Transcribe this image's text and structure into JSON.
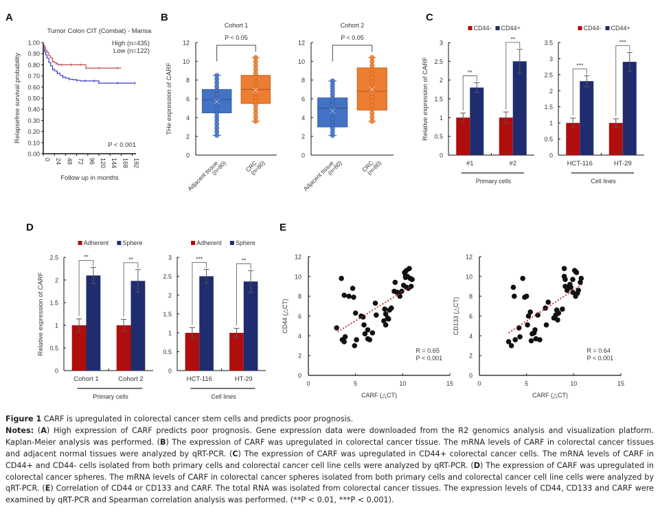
{
  "panels": {
    "A": "A",
    "B": "B",
    "C": "C",
    "D": "D",
    "E": "E"
  },
  "chart_data": [
    {
      "id": "A",
      "type": "line",
      "title": "Tumor Colon CIT (Combat) - Marisa",
      "xlabel": "Follow up in months",
      "ylabel": "Relapsefree survival probability",
      "xticks": [
        "0",
        "24",
        "48",
        "72",
        "96",
        "120",
        "144",
        "168",
        "192"
      ],
      "yticks": [
        "0.00",
        "0.10",
        "0.20",
        "0.30",
        "0.40",
        "0.50",
        "0.60",
        "0.70",
        "0.80",
        "0.90",
        "1.00"
      ],
      "xlim": [
        0,
        200
      ],
      "ylim": [
        0,
        1
      ],
      "annotation": "P < 0.001",
      "series": [
        {
          "name": "High (n=435)",
          "color": "#3a3acc",
          "x": [
            0,
            2,
            5,
            8,
            12,
            16,
            20,
            24,
            30,
            36,
            42,
            48,
            56,
            64,
            72,
            80,
            90,
            100,
            110,
            118,
            120,
            140,
            160,
            180,
            198
          ],
          "y": [
            0.95,
            0.92,
            0.89,
            0.86,
            0.82,
            0.79,
            0.76,
            0.745,
            0.725,
            0.705,
            0.69,
            0.68,
            0.67,
            0.665,
            0.66,
            0.655,
            0.655,
            0.655,
            0.655,
            0.655,
            0.635,
            0.635,
            0.635,
            0.635,
            0.635
          ]
        },
        {
          "name": "Low  (n=122)",
          "color": "#b94a48",
          "x": [
            0,
            2,
            5,
            8,
            12,
            16,
            20,
            24,
            28,
            32,
            40,
            50,
            60,
            70,
            80,
            90,
            92,
            100,
            120,
            140,
            160,
            168
          ],
          "y": [
            0.98,
            0.96,
            0.93,
            0.91,
            0.88,
            0.86,
            0.83,
            0.82,
            0.81,
            0.8,
            0.8,
            0.8,
            0.8,
            0.8,
            0.8,
            0.8,
            0.77,
            0.77,
            0.77,
            0.77,
            0.77,
            0.77
          ]
        }
      ]
    },
    {
      "id": "B1",
      "type": "box",
      "title": "Cohort 1",
      "ylabel": "THe expression of CARF",
      "ylim": [
        0,
        12
      ],
      "yticks": [
        "0",
        "2",
        "4",
        "6",
        "8",
        "10",
        "12"
      ],
      "significance": "P < 0.05",
      "categories": [
        "Adjacent tissue",
        "CRC"
      ],
      "category_n": [
        "(n=80)",
        "(n=80)"
      ],
      "boxes": [
        {
          "min": 2.1,
          "q1": 4.5,
          "median": 5.9,
          "q3": 7.0,
          "max": 8.5,
          "mean": 5.7,
          "color": "#4472c4"
        },
        {
          "min": 3.6,
          "q1": 5.5,
          "median": 7.0,
          "q3": 8.5,
          "max": 10.4,
          "mean": 6.9,
          "color": "#ed7d31"
        }
      ]
    },
    {
      "id": "B2",
      "type": "box",
      "title": "Cohort 2",
      "ylim": [
        0,
        12
      ],
      "yticks": [
        "0",
        "2",
        "4",
        "6",
        "8",
        "10",
        "12"
      ],
      "significance": "P < 0.05",
      "categories": [
        "Adjacent tissue",
        "CRC"
      ],
      "category_n": [
        "(n=80)",
        "(n=80)"
      ],
      "boxes": [
        {
          "min": 2.1,
          "q1": 3.0,
          "median": 5.0,
          "q3": 6.1,
          "max": 7.9,
          "mean": 4.7,
          "color": "#4472c4"
        },
        {
          "min": 3.6,
          "q1": 4.8,
          "median": 6.8,
          "q3": 9.3,
          "max": 10.4,
          "mean": 7.0,
          "color": "#ed7d31"
        }
      ]
    },
    {
      "id": "C1",
      "type": "bar",
      "ylabel": "Relative expression of CARF",
      "ylim": [
        0,
        3
      ],
      "yticks": [
        "0",
        "0.5",
        "1",
        "1.5",
        "2",
        "2.5",
        "3"
      ],
      "categories": [
        "#1",
        "#2"
      ],
      "group_label": "Primary cells",
      "legend": [
        "CD44-",
        "CD44+"
      ],
      "series": [
        {
          "name": "CD44-",
          "color": "#b00d0d",
          "values": [
            1.0,
            1.0
          ],
          "errors": [
            0.12,
            0.15
          ]
        },
        {
          "name": "CD44+",
          "color": "#1f2d6e",
          "values": [
            1.8,
            2.5
          ],
          "errors": [
            0.13,
            0.32
          ]
        }
      ],
      "stars": [
        "**",
        "**"
      ]
    },
    {
      "id": "C2",
      "type": "bar",
      "ylim": [
        0,
        3.5
      ],
      "yticks": [
        "0",
        "0.5",
        "1",
        "1.5",
        "2",
        "2.5",
        "3",
        "3.5"
      ],
      "categories": [
        "HCT-116",
        "HT-29"
      ],
      "group_label": "Cell lines",
      "legend": [
        "CD44-",
        "CD44+"
      ],
      "series": [
        {
          "name": "CD44-",
          "color": "#b00d0d",
          "values": [
            1.0,
            1.0
          ],
          "errors": [
            0.15,
            0.13
          ]
        },
        {
          "name": "CD44+",
          "color": "#1f2d6e",
          "values": [
            2.3,
            2.9
          ],
          "errors": [
            0.17,
            0.29
          ]
        }
      ],
      "stars": [
        "***",
        "***"
      ]
    },
    {
      "id": "D1",
      "type": "bar",
      "ylabel": "Relative expression of CARF",
      "ylim": [
        0,
        2.5
      ],
      "yticks": [
        "0",
        "0.5",
        "1",
        "1.5",
        "2",
        "2.5"
      ],
      "categories": [
        "Cohort 1",
        "Cohort 2"
      ],
      "group_label": "Primary cells",
      "legend": [
        "Adherent",
        "Sphere"
      ],
      "series": [
        {
          "name": "Adherent",
          "color": "#b00d0d",
          "values": [
            1.0,
            1.0
          ],
          "errors": [
            0.14,
            0.13
          ]
        },
        {
          "name": "Sphere",
          "color": "#1f2d6e",
          "values": [
            2.1,
            1.98
          ],
          "errors": [
            0.18,
            0.25
          ]
        }
      ],
      "stars": [
        "**",
        "**"
      ]
    },
    {
      "id": "D2",
      "type": "bar",
      "ylim": [
        0,
        3
      ],
      "yticks": [
        "0",
        "0.5",
        "1",
        "1.5",
        "2",
        "2.5",
        "3"
      ],
      "categories": [
        "HCT-116",
        "HT-29"
      ],
      "group_label": "Cell lines",
      "legend": [
        "Adherent",
        "Sphere"
      ],
      "series": [
        {
          "name": "Adherent",
          "color": "#b00d0d",
          "values": [
            1.0,
            1.0
          ],
          "errors": [
            0.14,
            0.12
          ]
        },
        {
          "name": "Sphere",
          "color": "#1f2d6e",
          "values": [
            2.5,
            2.36
          ],
          "errors": [
            0.18,
            0.29
          ]
        }
      ],
      "stars": [
        "***",
        "**"
      ]
    },
    {
      "id": "E1",
      "type": "scatter",
      "xlabel": "CARF (△CT)",
      "ylabel": "CD44 (△CT)",
      "xlim": [
        0,
        15
      ],
      "ylim": [
        0,
        12
      ],
      "xticks": [
        "0",
        "5",
        "10",
        "15"
      ],
      "yticks": [
        "0",
        "2",
        "4",
        "6",
        "8",
        "10",
        "12"
      ],
      "annotation": [
        "R = 0.65",
        "P < 0.001"
      ],
      "trend": {
        "x": [
          3.1,
          10.9
        ],
        "y": [
          4.4,
          9.0
        ],
        "color": "#c0282d"
      },
      "points": [
        [
          3.0,
          4.8
        ],
        [
          3.5,
          9.8
        ],
        [
          3.6,
          3.6
        ],
        [
          3.8,
          8.1
        ],
        [
          3.8,
          3.4
        ],
        [
          3.9,
          3.9
        ],
        [
          4.3,
          8.0
        ],
        [
          4.7,
          8.8
        ],
        [
          4.8,
          7.9
        ],
        [
          4.9,
          3.0
        ],
        [
          5.0,
          6.3
        ],
        [
          5.1,
          3.6
        ],
        [
          5.6,
          6.0
        ],
        [
          5.8,
          5.9
        ],
        [
          5.9,
          5.1
        ],
        [
          6.0,
          4.2
        ],
        [
          6.3,
          4.6
        ],
        [
          6.3,
          3.7
        ],
        [
          6.5,
          3.6
        ],
        [
          6.8,
          4.3
        ],
        [
          7.1,
          7.3
        ],
        [
          7.2,
          6.1
        ],
        [
          8.0,
          5.5
        ],
        [
          8.1,
          6.7
        ],
        [
          8.2,
          6.2
        ],
        [
          8.2,
          5.1
        ],
        [
          8.4,
          5.8
        ],
        [
          8.5,
          5.7
        ],
        [
          8.6,
          6.6
        ],
        [
          8.8,
          6.8
        ],
        [
          9.1,
          8.5
        ],
        [
          9.2,
          9.4
        ],
        [
          9.4,
          8.4
        ],
        [
          9.6,
          8.3
        ],
        [
          9.7,
          8.0
        ],
        [
          9.9,
          8.5
        ],
        [
          10.1,
          9.1
        ],
        [
          10.2,
          10.4
        ],
        [
          10.3,
          9.9
        ],
        [
          10.4,
          10.6
        ],
        [
          10.5,
          10.0
        ],
        [
          10.6,
          8.8
        ],
        [
          10.7,
          10.8
        ],
        [
          10.8,
          9.8
        ],
        [
          10.9,
          9.0
        ],
        [
          11.0,
          9.7
        ],
        [
          10.4,
          8.9
        ],
        [
          10.3,
          10.1
        ]
      ]
    },
    {
      "id": "E2",
      "type": "scatter",
      "xlabel": "CARF (△CT)",
      "ylabel": "CD133 (△CT)",
      "xlim": [
        0,
        15
      ],
      "ylim": [
        0,
        12
      ],
      "xticks": [
        "0",
        "5",
        "10",
        "15"
      ],
      "yticks": [
        "0",
        "2",
        "4",
        "6",
        "8",
        "10",
        "12"
      ],
      "annotation": [
        "R = 0.64",
        "P < 0.001"
      ],
      "trend": {
        "x": [
          3.1,
          10.9
        ],
        "y": [
          4.3,
          9.2
        ],
        "color": "#c0282d"
      },
      "points": [
        [
          3.1,
          3.4
        ],
        [
          3.4,
          3.0
        ],
        [
          3.6,
          8.9
        ],
        [
          3.7,
          8.0
        ],
        [
          3.8,
          3.6
        ],
        [
          4.2,
          4.8
        ],
        [
          4.3,
          3.9
        ],
        [
          4.6,
          9.8
        ],
        [
          4.8,
          7.9
        ],
        [
          5.0,
          8.0
        ],
        [
          5.1,
          5.1
        ],
        [
          5.2,
          6.0
        ],
        [
          5.4,
          6.4
        ],
        [
          5.5,
          3.5
        ],
        [
          5.6,
          4.2
        ],
        [
          5.8,
          4.3
        ],
        [
          5.9,
          4.6
        ],
        [
          6.0,
          3.7
        ],
        [
          6.2,
          6.1
        ],
        [
          6.4,
          3.6
        ],
        [
          7.0,
          6.8
        ],
        [
          7.1,
          5.1
        ],
        [
          7.3,
          7.4
        ],
        [
          7.9,
          5.8
        ],
        [
          8.1,
          6.1
        ],
        [
          8.2,
          6.6
        ],
        [
          8.3,
          5.6
        ],
        [
          8.4,
          6.3
        ],
        [
          8.8,
          6.7
        ],
        [
          9.0,
          10.8
        ],
        [
          9.0,
          10.0
        ],
        [
          9.1,
          9.7
        ],
        [
          9.1,
          9.0
        ],
        [
          9.3,
          8.6
        ],
        [
          9.4,
          8.9
        ],
        [
          9.6,
          9.2
        ],
        [
          9.7,
          8.9
        ],
        [
          9.9,
          9.7
        ],
        [
          9.9,
          8.4
        ],
        [
          10.1,
          10.6
        ],
        [
          10.2,
          8.0
        ],
        [
          10.3,
          10.4
        ],
        [
          10.4,
          8.3
        ],
        [
          10.5,
          8.6
        ],
        [
          10.7,
          9.4
        ],
        [
          10.8,
          9.8
        ],
        [
          10.2,
          10.5
        ]
      ]
    }
  ],
  "caption": {
    "figure_label": "Figure 1",
    "figure_title": " CARF is upregulated in colorectal cancer stem cells and predicts poor prognosis.",
    "notes_label": "Notes:",
    "notes": [
      {
        "tag": "A",
        "text": " High expression of CARF predicts poor prognosis. Gene expression data were downloaded from the R2 genomics analysis and visualization platform. Kaplan-Meier analysis was performed. "
      },
      {
        "tag": "B",
        "text": " The expression of CARF was upregulated in colorectal cancer tissue. The mRNA levels of CARF in colorectal cancer tissues and adjacent normal tissues were analyzed by qRT-PCR. "
      },
      {
        "tag": "C",
        "text": " The expression of CARF was upregulated in CD44+ colorectal cancer cells. The mRNA levels of CARF in CD44+ and CD44- cells isolated from both primary cells and colorectal cancer cell line cells were analyzed by qRT-PCR. "
      },
      {
        "tag": "D",
        "text": " The expression of CARF was upregulated in colorectal cancer spheres. The mRNA levels of CARF in colorectal cancer spheres isolated from both primary cells and colorectal cancer cell line cells were analyzed by qRT-PCR. "
      },
      {
        "tag": "E",
        "text": " Correlation of CD44 or CD133 and CARF. The total RNA was isolated from colorectal cancer tissues. The expression levels of CD44, CD133 and CARF were examined by qRT-PCR and Spearman correlation analysis was performed. (**P < 0.01, ***P < 0.001)."
      }
    ]
  }
}
